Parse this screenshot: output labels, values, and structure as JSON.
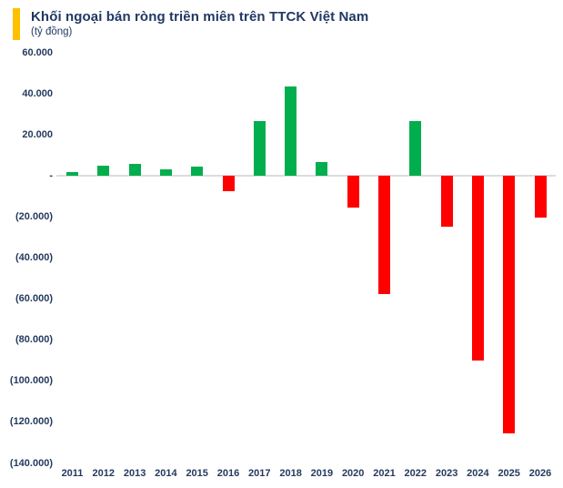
{
  "title": "Khối ngoại bán ròng triền miên trên TTCK Việt Nam",
  "subtitle": "(tỷ đồng)",
  "colors": {
    "positive": "#00AE4D",
    "negative": "#FE0000",
    "title_text": "#203864",
    "axis_label_text": "#243A5E",
    "accent_bar": "#FFC000",
    "axis_line": "#DCDCDC",
    "background": "#FFFFFF"
  },
  "chart_data": {
    "type": "bar",
    "title": "Khối ngoại bán ròng triền miên trên TTCK Việt Nam",
    "subtitle": "(tỷ đồng)",
    "unit": "tỷ đồng",
    "categories": [
      "2011",
      "2012",
      "2013",
      "2014",
      "2015",
      "2016",
      "2017",
      "2018",
      "2019",
      "2020",
      "2021",
      "2022",
      "2023",
      "2024",
      "2025",
      "2026"
    ],
    "values": [
      2000,
      5000,
      5900,
      3300,
      4500,
      -7600,
      26700,
      43400,
      6700,
      -15500,
      -57600,
      26700,
      -24600,
      -90000,
      -125300,
      -20300
    ],
    "ylim": [
      -140000,
      60000
    ],
    "y_tick_values": [
      60000,
      40000,
      20000,
      0,
      -20000,
      -40000,
      -60000,
      -80000,
      -100000,
      -120000,
      -140000
    ],
    "y_tick_labels": [
      "60.000",
      "40.000",
      "20.000",
      "-",
      "(20.000)",
      "(40.000)",
      "(60.000)",
      "(80.000)",
      "(100.000)",
      "(120.000)",
      "(140.000)"
    ],
    "grid": false,
    "legend": "none",
    "positive_color": "#00AE4D",
    "negative_color": "#FE0000"
  }
}
